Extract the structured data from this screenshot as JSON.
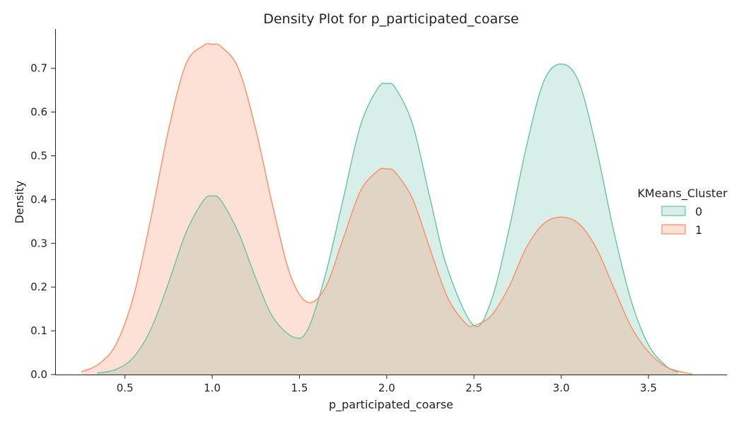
{
  "chart_data": {
    "type": "area",
    "title": "Density Plot for p_participated_coarse",
    "xlabel": "p_participated_coarse",
    "ylabel": "Density",
    "xlim": [
      0.1,
      3.95
    ],
    "ylim": [
      0,
      0.79
    ],
    "x_ticks": [
      0.5,
      1.0,
      1.5,
      2.0,
      2.5,
      3.0,
      3.5
    ],
    "x_tick_labels": [
      "0.5",
      "1.0",
      "1.5",
      "2.0",
      "2.5",
      "3.0",
      "3.5"
    ],
    "y_ticks": [
      0.0,
      0.1,
      0.2,
      0.3,
      0.4,
      0.5,
      0.6,
      0.7
    ],
    "y_tick_labels": [
      "0.0",
      "0.1",
      "0.2",
      "0.3",
      "0.4",
      "0.5",
      "0.6",
      "0.7"
    ],
    "grid": false,
    "legend": {
      "title": "KMeans_Cluster",
      "position": "right"
    },
    "series": [
      {
        "name": "0",
        "color": "#66c2a5",
        "fill": "#d6efe6",
        "x": [
          0.34,
          0.45,
          0.55,
          0.65,
          0.75,
          0.85,
          0.95,
          1.0,
          1.05,
          1.15,
          1.25,
          1.35,
          1.47,
          1.55,
          1.65,
          1.75,
          1.85,
          1.95,
          2.0,
          2.05,
          2.15,
          2.25,
          2.35,
          2.5,
          2.6,
          2.7,
          2.8,
          2.9,
          3.0,
          3.1,
          3.2,
          3.3,
          3.4,
          3.5,
          3.6,
          3.67
        ],
        "y": [
          0.003,
          0.012,
          0.04,
          0.105,
          0.21,
          0.325,
          0.398,
          0.408,
          0.398,
          0.325,
          0.22,
          0.13,
          0.085,
          0.105,
          0.23,
          0.4,
          0.57,
          0.655,
          0.665,
          0.655,
          0.57,
          0.4,
          0.24,
          0.112,
          0.17,
          0.33,
          0.52,
          0.67,
          0.71,
          0.67,
          0.52,
          0.33,
          0.17,
          0.068,
          0.02,
          0.005
        ]
      },
      {
        "name": "1",
        "color": "#fc8d62",
        "fill": "#fcdfd4",
        "x": [
          0.25,
          0.35,
          0.45,
          0.55,
          0.65,
          0.75,
          0.85,
          0.95,
          1.0,
          1.05,
          1.15,
          1.25,
          1.35,
          1.45,
          1.55,
          1.65,
          1.75,
          1.85,
          1.95,
          2.0,
          2.05,
          2.15,
          2.25,
          2.35,
          2.45,
          2.5,
          2.6,
          2.7,
          2.8,
          2.9,
          3.0,
          3.1,
          3.2,
          3.3,
          3.4,
          3.5,
          3.6,
          3.7,
          3.75
        ],
        "y": [
          0.006,
          0.024,
          0.07,
          0.18,
          0.36,
          0.56,
          0.71,
          0.752,
          0.755,
          0.75,
          0.7,
          0.56,
          0.38,
          0.225,
          0.165,
          0.2,
          0.31,
          0.42,
          0.466,
          0.47,
          0.462,
          0.4,
          0.285,
          0.175,
          0.118,
          0.112,
          0.135,
          0.2,
          0.29,
          0.345,
          0.36,
          0.345,
          0.29,
          0.2,
          0.11,
          0.052,
          0.018,
          0.005,
          0.002
        ]
      }
    ]
  }
}
